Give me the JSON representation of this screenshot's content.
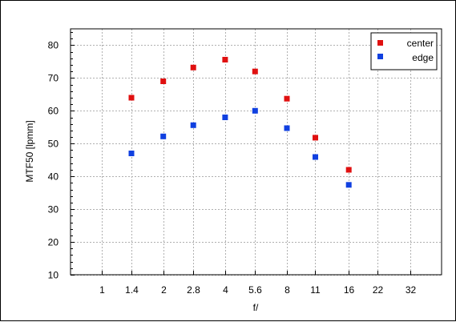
{
  "chart_data": {
    "type": "scatter",
    "title": "",
    "xlabel": "f/",
    "ylabel": "MTF50 [lpmm]",
    "x_scale": "log2",
    "x_ticks": [
      1,
      1.4,
      2,
      2.8,
      4,
      5.6,
      8,
      11,
      16,
      22,
      32
    ],
    "x_tick_labels": [
      "1",
      "1.4",
      "2",
      "2.8",
      "4",
      "5.6",
      "8",
      "11",
      "16",
      "22",
      "32"
    ],
    "xlim": [
      0.707,
      45.3
    ],
    "ylim": [
      10,
      85
    ],
    "y_ticks": [
      10,
      20,
      30,
      40,
      50,
      60,
      70,
      80
    ],
    "y_tick_labels": [
      "10",
      "20",
      "30",
      "40",
      "50",
      "60",
      "70",
      "80"
    ],
    "grid": true,
    "legend_position": "top-right",
    "series": [
      {
        "name": "center",
        "color": "#e01010",
        "x": [
          1.4,
          2,
          2.8,
          4,
          5.6,
          8,
          11,
          16
        ],
        "y": [
          64,
          69,
          73.2,
          75.6,
          72,
          63.7,
          51.8,
          42
        ]
      },
      {
        "name": "edge",
        "color": "#1040e0",
        "x": [
          1.4,
          2,
          2.8,
          4,
          5.6,
          8,
          11,
          16
        ],
        "y": [
          47,
          52.2,
          55.6,
          58,
          60,
          54.7,
          45.9,
          37.4
        ]
      }
    ]
  }
}
